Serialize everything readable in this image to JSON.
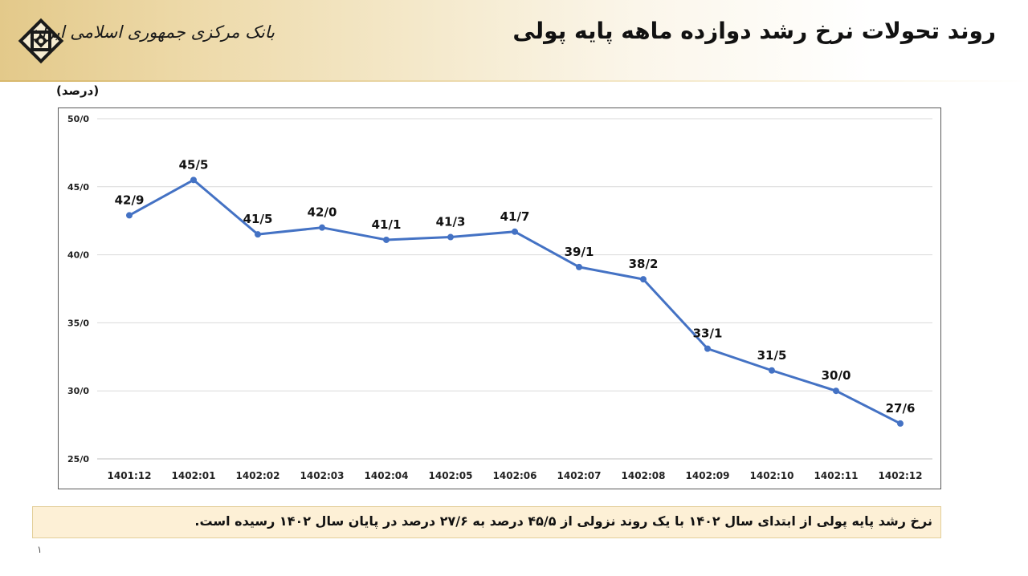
{
  "header": {
    "title": "روند تحولات نرخ رشد دوازده ماهه پایه پولی",
    "bank_name": "بانک مرکزی جمهوری اسلامی ایران",
    "logo_icon": "cbi-logo-icon"
  },
  "chart_data": {
    "type": "line",
    "title": "",
    "ylabel": "(درصد)",
    "xlabel": "",
    "ylim": [
      25,
      50
    ],
    "yticks": [
      25,
      30,
      35,
      40,
      45,
      50
    ],
    "ytick_labels": [
      "25/0",
      "30/0",
      "35/0",
      "40/0",
      "45/0",
      "50/0"
    ],
    "grid": "horizontal",
    "legend": "none",
    "categories": [
      "1401:12",
      "1402:01",
      "1402:02",
      "1402:03",
      "1402:04",
      "1402:05",
      "1402:06",
      "1402:07",
      "1402:08",
      "1402:09",
      "1402:10",
      "1402:11",
      "1402:12"
    ],
    "series": [
      {
        "color": "#4472c4",
        "values": [
          42.9,
          45.5,
          41.5,
          42.0,
          41.1,
          41.3,
          41.7,
          39.1,
          38.2,
          33.1,
          31.5,
          30.0,
          27.6
        ],
        "data_labels": [
          "42/9",
          "45/5",
          "41/5",
          "42/0",
          "41/1",
          "41/3",
          "41/7",
          "39/1",
          "38/2",
          "33/1",
          "31/5",
          "30/0",
          "27/6"
        ]
      }
    ]
  },
  "summary": "نرخ رشد پایه پولی از ابتدای سال ۱۴۰۲ با یک روند نزولی از ۴۵/۵ درصد به ۲۷/۶ درصد در پایان سال ۱۴۰۲ رسیده است.",
  "page_number": "۱"
}
